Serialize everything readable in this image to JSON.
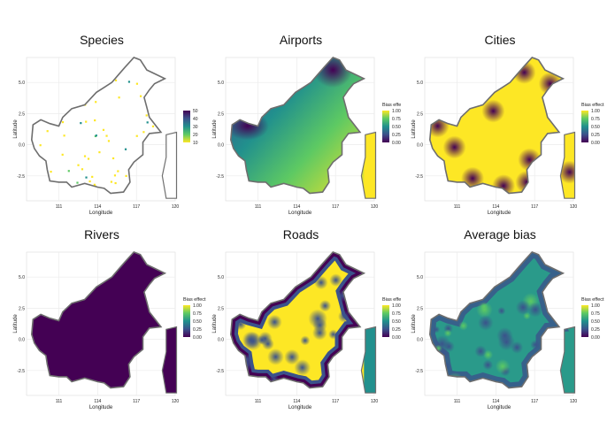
{
  "figure": {
    "panels": [
      {
        "id": "species",
        "title": "Species",
        "legend_title": "",
        "legend_ticks": [
          "50",
          "40",
          "30",
          "20",
          "10"
        ],
        "palette": "viridis-reversed"
      },
      {
        "id": "airports",
        "title": "Airports",
        "legend_title": "Bias effe",
        "legend_ticks": [
          "1.00",
          "0.75",
          "0.50",
          "0.25",
          "0.00"
        ],
        "palette": "viridis"
      },
      {
        "id": "cities",
        "title": "Cities",
        "legend_title": "Bias effect",
        "legend_ticks": [
          "1.00",
          "0.75",
          "0.50",
          "0.25",
          "0.00"
        ],
        "palette": "viridis"
      },
      {
        "id": "rivers",
        "title": "Rivers",
        "legend_title": "Bias effect",
        "legend_ticks": [
          "1.00",
          "0.75",
          "0.50",
          "0.25",
          "0.00"
        ],
        "palette": "viridis"
      },
      {
        "id": "roads",
        "title": "Roads",
        "legend_title": "Bias effe",
        "legend_ticks": [
          "1.00",
          "0.75",
          "0.50",
          "0.25",
          "0.00"
        ],
        "palette": "viridis"
      },
      {
        "id": "average",
        "title": "Average bias",
        "legend_title": "Bias effect",
        "legend_ticks": [
          "1.00",
          "0.75",
          "0.50",
          "0.25",
          "0.00"
        ],
        "palette": "viridis"
      }
    ],
    "xlabel": "Longitude",
    "ylabel": "Latitude",
    "x_ticks": [
      "111",
      "114",
      "117",
      "120"
    ],
    "y_ticks": [
      "5.0",
      "2.5",
      "0.0",
      "-2.5"
    ],
    "colors": {
      "viridis": [
        "#440154",
        "#3b528b",
        "#21908d",
        "#5dc963",
        "#fde725"
      ],
      "outline": "#6e6e6e",
      "grid": "#ebebeb"
    }
  },
  "chart_data": [
    {
      "type": "heatmap",
      "title": "Species",
      "xlabel": "Longitude",
      "ylabel": "Latitude",
      "xlim": [
        108.5,
        120
      ],
      "ylim": [
        -4.5,
        7
      ],
      "legend": {
        "values": [
          10,
          20,
          30,
          40,
          50
        ],
        "position": "right"
      }
    },
    {
      "type": "heatmap",
      "title": "Airports",
      "xlabel": "Longitude",
      "ylabel": "Latitude",
      "xlim": [
        108.5,
        120
      ],
      "ylim": [
        -4.5,
        7
      ],
      "legend": {
        "title": "Bias effe",
        "values": [
          0,
          0.25,
          0.5,
          0.75,
          1
        ],
        "position": "right"
      }
    },
    {
      "type": "heatmap",
      "title": "Cities",
      "xlabel": "Longitude",
      "ylabel": "Latitude",
      "xlim": [
        108.5,
        120
      ],
      "ylim": [
        -4.5,
        7
      ],
      "legend": {
        "title": "Bias effect",
        "values": [
          0,
          0.25,
          0.5,
          0.75,
          1
        ],
        "position": "right"
      }
    },
    {
      "type": "heatmap",
      "title": "Rivers",
      "xlabel": "Longitude",
      "ylabel": "Latitude",
      "xlim": [
        108.5,
        120
      ],
      "ylim": [
        -4.5,
        7
      ],
      "legend": {
        "title": "Bias effect",
        "values": [
          0,
          0.25,
          0.5,
          0.75,
          1
        ],
        "position": "right"
      }
    },
    {
      "type": "heatmap",
      "title": "Roads",
      "xlabel": "Longitude",
      "ylabel": "Latitude",
      "xlim": [
        108.5,
        120
      ],
      "ylim": [
        -4.5,
        7
      ],
      "legend": {
        "title": "Bias effe",
        "values": [
          0,
          0.25,
          0.5,
          0.75,
          1
        ],
        "position": "right"
      }
    },
    {
      "type": "heatmap",
      "title": "Average bias",
      "xlabel": "Longitude",
      "ylabel": "Latitude",
      "xlim": [
        108.5,
        120
      ],
      "ylim": [
        -4.5,
        7
      ],
      "legend": {
        "title": "Bias effect",
        "values": [
          0,
          0.25,
          0.5,
          0.75,
          1
        ],
        "position": "right"
      }
    }
  ]
}
